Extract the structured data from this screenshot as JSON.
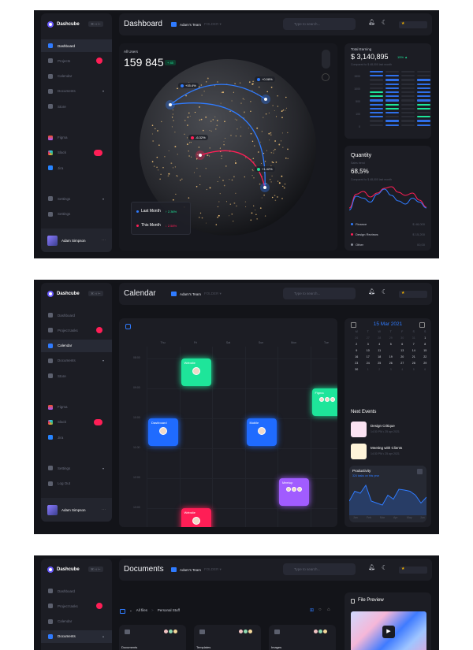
{
  "brand": "Dashcube",
  "kbd": "⌘ H ⊢",
  "header": {
    "team": "Adam's Team",
    "folder_label": "FOLDER ▾",
    "search_placeholder": "Type to search..."
  },
  "user": {
    "name": "Adam Simpson"
  },
  "colors": {
    "bg": "#131419",
    "card": "#1c1d24",
    "accent": "#2f7bff",
    "green": "#1ee59a",
    "red": "#ff1e56",
    "purple": "#a15cff"
  },
  "screens": [
    {
      "title": "Dashboard",
      "sidebar": [
        {
          "label": "Dashboard",
          "icon": "grid-icon",
          "active": true
        },
        {
          "label": "Projects",
          "icon": "briefcase-icon",
          "badge": "dot"
        },
        {
          "label": "Calendar",
          "icon": "calendar-icon"
        },
        {
          "label": "Documents",
          "icon": "folder-icon",
          "chevron": "▾"
        },
        {
          "label": "Store",
          "icon": "store-icon"
        },
        {
          "label": "Figma",
          "icon": "figma-icon",
          "gap": true
        },
        {
          "label": "Slack",
          "icon": "slack-icon",
          "badge": "pill"
        },
        {
          "label": "Jira",
          "icon": "jira-icon"
        },
        {
          "label": "Settings",
          "icon": "gear-icon",
          "chevron": "▾",
          "gap": true
        },
        {
          "label": "Settings",
          "icon": "logout-icon"
        }
      ]
    },
    {
      "title": "Calendar",
      "sidebar": [
        {
          "label": "Dashboard",
          "icon": "grid-icon"
        },
        {
          "label": "Project tasks",
          "icon": "briefcase-icon",
          "badge": "dot"
        },
        {
          "label": "Calendar",
          "icon": "calendar-icon",
          "active": true
        },
        {
          "label": "Documents",
          "icon": "folder-icon",
          "chevron": "▾"
        },
        {
          "label": "Store",
          "icon": "store-icon"
        },
        {
          "label": "Figma",
          "icon": "figma-icon",
          "gap": true
        },
        {
          "label": "Slack",
          "icon": "slack-icon",
          "badge": "pill"
        },
        {
          "label": "Jira",
          "icon": "jira-icon"
        },
        {
          "label": "Settings",
          "icon": "gear-icon",
          "chevron": "▾",
          "gap": true
        },
        {
          "label": "Log Out",
          "icon": "logout-icon"
        }
      ]
    },
    {
      "title": "Documents",
      "sidebar": [
        {
          "label": "Dashboard",
          "icon": "grid-icon"
        },
        {
          "label": "Project tasks",
          "icon": "briefcase-icon",
          "badge": "dot"
        },
        {
          "label": "Calendar",
          "icon": "calendar-icon"
        },
        {
          "label": "Documents",
          "icon": "folder-icon",
          "chevron": "▴",
          "active": true
        }
      ]
    }
  ],
  "dashboard": {
    "all_users": {
      "label": "All Users",
      "value": "159 845",
      "badge": "+ 45"
    },
    "globe_labels": [
      "+15.4%",
      "+0.08%",
      "-6.32%",
      "+1.42%"
    ],
    "legend": [
      {
        "label": "Last Month",
        "change": "↑ 2.36%",
        "color": "#1ee59a"
      },
      {
        "label": "This Month",
        "change": "↓ 2.58%",
        "color": "#ff1e56"
      }
    ],
    "earning": {
      "title": "Total Earning",
      "value": "$ 3,140,895",
      "change": "15% ▲",
      "compare": "Compared to $ 48,000 last month",
      "y_ticks": [
        "1500",
        "1000",
        "500",
        "100",
        "0"
      ],
      "columns": [
        [
          "b",
          "b",
          "d",
          "d",
          "d",
          "g",
          "g",
          "b",
          "b",
          "b",
          "b",
          "b",
          "d",
          "d"
        ],
        [
          "d",
          "b",
          "b",
          "b",
          "b",
          "b",
          "b",
          "b",
          "g",
          "g",
          "b",
          "d",
          "b",
          "b"
        ],
        [
          "d",
          "d",
          "d",
          "d",
          "d",
          "d",
          "d",
          "d",
          "d",
          "d",
          "d",
          "d",
          "d",
          "d"
        ],
        [
          "d",
          "d",
          "b",
          "b",
          "b",
          "b",
          "b",
          "b",
          "g",
          "g",
          "d",
          "g",
          "b",
          "b"
        ]
      ]
    },
    "quantity": {
      "title": "Quantity",
      "subtitle": "Sales trend",
      "value": "68,5%",
      "compare": "Compared to $ 48,000 last month",
      "series": [
        {
          "color": "#ff1e56",
          "values": [
            20,
            55,
            62,
            48,
            58,
            70,
            74,
            60,
            52,
            58,
            40,
            22
          ]
        },
        {
          "color": "#2f7bff",
          "values": [
            15,
            50,
            45,
            35,
            55,
            68,
            52,
            38,
            30,
            45,
            35,
            20
          ]
        }
      ],
      "legend": [
        {
          "label": "Finance",
          "value": "$ 48,000",
          "color": "#2f7bff"
        },
        {
          "label": "Design Reviews",
          "value": "$ 15,200",
          "color": "#ff1e56"
        },
        {
          "label": "Other",
          "value": "00,00",
          "color": "#8a8e9a"
        }
      ]
    }
  },
  "calendar": {
    "days": [
      "Thu",
      "Fri",
      "Sat",
      "Sun",
      "Mon",
      "Tue"
    ],
    "times": [
      "08:00",
      "09:00",
      "10:00",
      "11:00",
      "12:00",
      "13:00"
    ],
    "events": [
      {
        "title": "Website",
        "day": 1,
        "start": 0,
        "color": "#1ee59a",
        "people": 1
      },
      {
        "title": "Figma",
        "day": 5,
        "start": 1,
        "color": "#1ee59a",
        "people": 3
      },
      {
        "title": "Dashboard",
        "day": 0,
        "start": 2,
        "color": "#1f6bff",
        "people": 1
      },
      {
        "title": "Mobile",
        "day": 3,
        "start": 2,
        "color": "#1f6bff",
        "people": 1
      },
      {
        "title": "Meetup",
        "day": 4,
        "start": 4,
        "color": "#a15cff",
        "people": 3
      },
      {
        "title": "Website",
        "day": 1,
        "start": 5,
        "color": "#ff1e56",
        "people": 1
      }
    ],
    "mini": {
      "month": "15 Mar 2021",
      "weekdays": [
        "M",
        "T",
        "W",
        "T",
        "F",
        "S",
        "S"
      ],
      "cells": [
        "26",
        "27",
        "28",
        "29",
        "30",
        "31",
        "1",
        "2",
        "3",
        "4",
        "5",
        "6",
        "7",
        "8",
        "9",
        "10",
        "11",
        "",
        "13",
        "14",
        "15",
        "16",
        "17",
        "18",
        "19",
        "20",
        "21",
        "22",
        "23",
        "24",
        "25",
        "26",
        "27",
        "28",
        "29",
        "30",
        "1",
        "2",
        "3",
        "4",
        "5",
        "6"
      ]
    },
    "next_events_title": "Next Events",
    "next_events": [
      {
        "title": "Design Critique",
        "time": "14:30 PM • 25 apr 2021",
        "bg": "#fbe3f3"
      },
      {
        "title": "Meeting with Clients",
        "time": "14:30 PM • 25 apr 2021",
        "bg": "#fff4d9"
      }
    ],
    "productivity": {
      "title": "Productivity",
      "subtitle": "324 tasks on this year",
      "months": [
        "Jan",
        "Feb",
        "Mar",
        "Apr",
        "May",
        "Jun"
      ],
      "values": [
        30,
        55,
        50,
        70,
        30,
        25,
        20,
        45,
        35,
        60,
        58,
        55,
        45,
        25,
        40
      ]
    }
  },
  "documents": {
    "breadcrumb": [
      "All files",
      "Personal Stuff"
    ],
    "folders": [
      "Documents",
      "Templates",
      "Images"
    ],
    "preview_title": "File Preview"
  }
}
